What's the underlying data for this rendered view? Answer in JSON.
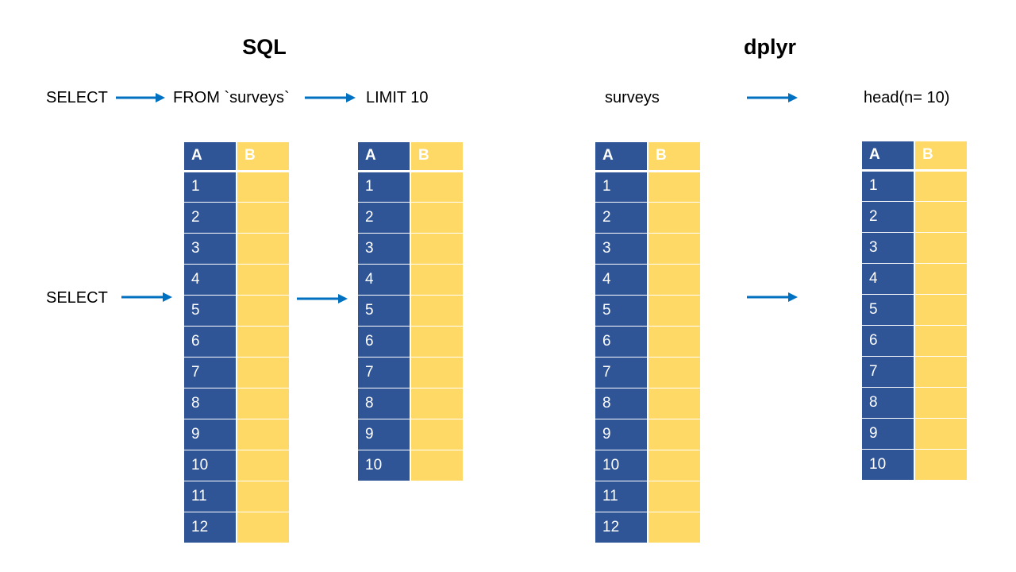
{
  "titles": {
    "sql": "SQL",
    "dplyr": "dplyr"
  },
  "sql_row": {
    "select": "SELECT",
    "from": "FROM `surveys`",
    "limit": "LIMIT 10"
  },
  "sql_side_label": "SELECT",
  "dplyr_row": {
    "surveys": "surveys",
    "head": "head(n= 10)"
  },
  "header": {
    "a": "A",
    "b": "B"
  },
  "rows12": [
    "1",
    "2",
    "3",
    "4",
    "5",
    "6",
    "7",
    "8",
    "9",
    "10",
    "11",
    "12"
  ],
  "rows10": [
    "1",
    "2",
    "3",
    "4",
    "5",
    "6",
    "7",
    "8",
    "9",
    "10"
  ],
  "colors": {
    "col_a": "#2f5597",
    "col_b": "#ffd966",
    "arrow": "#0070c0"
  }
}
